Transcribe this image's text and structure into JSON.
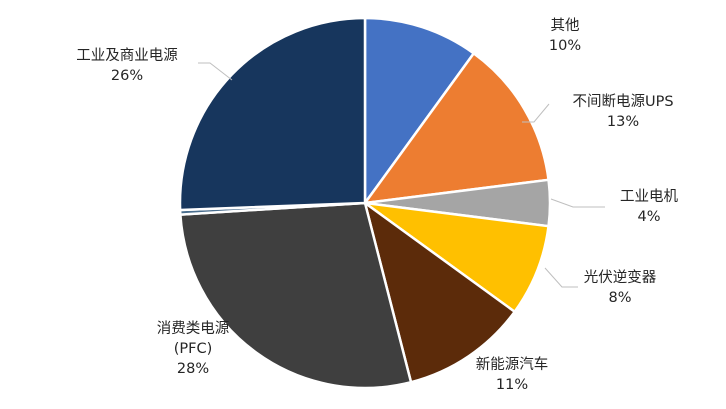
{
  "chart_data": {
    "type": "pie",
    "title": "",
    "legend": "none",
    "slices": [
      {
        "label": "其他",
        "percent_text": "10%",
        "value": 10,
        "color": "#4472C4"
      },
      {
        "label": "不间断电源UPS",
        "percent_text": "13%",
        "value": 13,
        "color": "#ED7D31"
      },
      {
        "label": "工业电机",
        "percent_text": "4%",
        "value": 4,
        "color": "#A5A5A5"
      },
      {
        "label": "光伏逆变器",
        "percent_text": "8%",
        "value": 8,
        "color": "#FFC000"
      },
      {
        "label": "新能源汽车",
        "percent_text": "11%",
        "value": 11,
        "color": "#5C2B0A"
      },
      {
        "label": "消费类电源",
        "sublabel": "(PFC)",
        "percent_text": "28%",
        "value": 28,
        "color": "#3F3F3F"
      },
      {
        "label": "",
        "percent_text": "",
        "value": 0.4,
        "color": "#4A6E8E"
      },
      {
        "label": "工业及商业电源",
        "percent_text": "26%",
        "value": 25.6,
        "color": "#17365D"
      }
    ]
  }
}
